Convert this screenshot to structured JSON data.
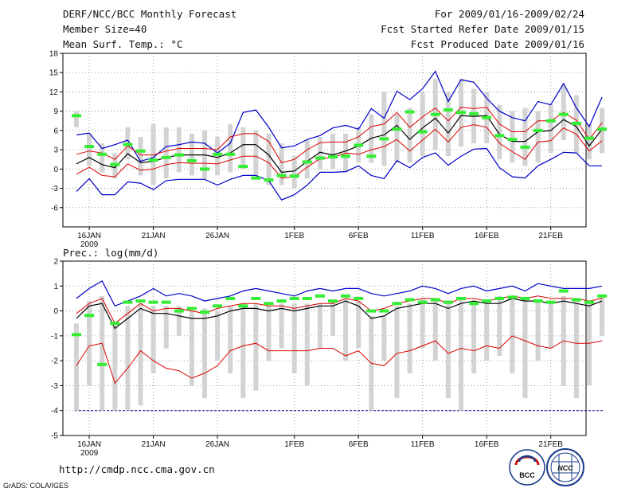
{
  "header": {
    "title": "DERF/NCC/BCC Monthly Forecast",
    "member": "Member Size=40",
    "variable": "Mean Surf. Temp.: °C",
    "period": "For 2009/01/16-2009/02/24",
    "started": "Fcst Started Refer Date 2009/01/15",
    "produced": "Fcst Produced Date 2009/01/16"
  },
  "footer": {
    "url": "http://cmdp.ncc.cma.gov.cn",
    "credit": "GrADS: COLA/IGES",
    "logo_left": "BCC",
    "logo_right": "NCC"
  },
  "colors": {
    "ensemble_mean": "#000000",
    "std_band": "#dd0000",
    "extremes": "#0000cc",
    "box": "#d3d3d3",
    "climatology": "#33ee33",
    "baseline": "#000080"
  },
  "chart_data": [
    {
      "type": "line",
      "title": "Mean Surf. Temp.: °C",
      "xlabel": "",
      "ylabel": "°C",
      "x_ticks": [
        "16JAN",
        "21JAN",
        "26JAN",
        "1FEB",
        "6FEB",
        "11FEB",
        "16FEB",
        "21FEB"
      ],
      "x_tick_days": [
        1,
        6,
        11,
        17,
        22,
        27,
        32,
        37
      ],
      "x_sub_label": "2009",
      "yticks": [
        18,
        15,
        12,
        9,
        6,
        3,
        0,
        -3,
        -6
      ],
      "ylim": [
        -9,
        18
      ],
      "days": 40,
      "series": [
        {
          "name": "max",
          "values": [
            5.3,
            5.6,
            3.2,
            3.8,
            4.5,
            1.2,
            1.8,
            3.5,
            3.8,
            4.2,
            4.0,
            2.5,
            4.0,
            8.8,
            9.2,
            6.5,
            3.3,
            3.6,
            4.6,
            5.2,
            6.4,
            6.8,
            6.2,
            9.4,
            7.9,
            12.1,
            10.8,
            12.5,
            15.2,
            10.5,
            13.9,
            13.5,
            11.0,
            9.0,
            8.0,
            7.5,
            10.5,
            10.0,
            13.3,
            9.5,
            6.6,
            11.2
          ]
        },
        {
          "name": "mean_plus_std",
          "values": [
            2.3,
            2.8,
            2.5,
            1.5,
            3.6,
            2.2,
            2.2,
            2.8,
            3.2,
            3.2,
            3.2,
            3.0,
            5.0,
            5.5,
            5.5,
            4.3,
            1.0,
            1.5,
            3.0,
            4.1,
            4.2,
            4.2,
            5.0,
            6.6,
            7.0,
            8.8,
            6.5,
            8.1,
            9.5,
            7.5,
            9.6,
            9.4,
            9.6,
            7.0,
            5.8,
            5.8,
            7.5,
            7.5,
            8.8,
            7.6,
            4.6,
            7.2
          ]
        },
        {
          "name": "mean",
          "values": [
            0.8,
            1.8,
            0.7,
            0.2,
            2.4,
            1.0,
            1.2,
            1.8,
            2.2,
            2.2,
            2.2,
            1.8,
            2.5,
            3.8,
            3.8,
            2.2,
            -0.5,
            -0.3,
            1.2,
            2.6,
            2.2,
            2.8,
            3.6,
            4.8,
            5.3,
            6.8,
            4.6,
            6.4,
            7.9,
            5.6,
            8.3,
            8.2,
            8.3,
            5.4,
            4.3,
            4.3,
            5.8,
            6.0,
            7.7,
            6.6,
            3.6,
            6.2
          ]
        },
        {
          "name": "mean_minus_std",
          "values": [
            -0.8,
            0.3,
            -1.0,
            -1.2,
            0.8,
            -0.2,
            0.0,
            0.7,
            1.0,
            0.9,
            0.9,
            0.8,
            1.4,
            2.0,
            2.0,
            1.0,
            -1.4,
            -1.2,
            0.3,
            1.6,
            1.8,
            2.5,
            2.3,
            3.0,
            3.5,
            4.6,
            2.8,
            4.5,
            6.2,
            4.2,
            6.5,
            6.9,
            6.5,
            4.0,
            2.7,
            1.5,
            4.2,
            4.4,
            6.4,
            5.4,
            2.8,
            4.4
          ]
        },
        {
          "name": "min",
          "values": [
            -3.5,
            -1.5,
            -4.0,
            -4.0,
            -2.0,
            -2.2,
            -3.2,
            -1.8,
            -1.6,
            -1.6,
            -1.6,
            -2.5,
            -1.6,
            -1.0,
            -1.0,
            -1.8,
            -4.8,
            -4.0,
            -2.5,
            -0.5,
            -0.5,
            -0.4,
            0.5,
            -1.0,
            -1.5,
            1.3,
            0.2,
            1.8,
            2.5,
            0.6,
            2.0,
            3.1,
            3.2,
            0.2,
            -1.2,
            -1.4,
            0.5,
            1.5,
            2.6,
            2.5,
            0.5,
            0.5
          ]
        },
        {
          "name": "boxes",
          "values": [
            [
              6.5,
              9.0
            ],
            [
              0.5,
              5.5
            ],
            [
              -0.5,
              4.0
            ],
            [
              -1.5,
              2.5
            ],
            [
              1.5,
              6.5
            ],
            [
              -1.0,
              5.0
            ],
            [
              -2.5,
              7.0
            ],
            [
              -1.5,
              6.5
            ],
            [
              -0.5,
              6.5
            ],
            [
              -1.0,
              5.5
            ],
            [
              -1.5,
              6.0
            ],
            [
              -1.0,
              5.0
            ],
            [
              -0.5,
              7.0
            ],
            [
              0.0,
              6.5
            ],
            [
              -1.0,
              6.0
            ],
            [
              -2.5,
              5.5
            ],
            [
              -2.5,
              4.0
            ],
            [
              -3.0,
              2.0
            ],
            [
              -1.5,
              4.5
            ],
            [
              0.0,
              5.0
            ],
            [
              0.0,
              5.5
            ],
            [
              -0.5,
              5.5
            ],
            [
              1.0,
              6.5
            ],
            [
              1.0,
              8.5
            ],
            [
              0.5,
              12.0
            ],
            [
              1.0,
              8.5
            ],
            [
              1.0,
              9.5
            ],
            [
              2.0,
              12.0
            ],
            [
              3.0,
              14.0
            ],
            [
              2.0,
              12.0
            ],
            [
              3.5,
              14.0
            ],
            [
              4.0,
              12.5
            ],
            [
              4.0,
              12.0
            ],
            [
              1.5,
              10.0
            ],
            [
              1.0,
              9.0
            ],
            [
              0.5,
              9.5
            ],
            [
              1.0,
              9.0
            ],
            [
              2.5,
              10.0
            ],
            [
              4.5,
              13.0
            ],
            [
              2.5,
              11.5
            ],
            [
              1.5,
              7.0
            ],
            [
              2.5,
              9.5
            ]
          ]
        },
        {
          "name": "climatology",
          "values": [
            8.3,
            3.5,
            2.3,
            0.7,
            3.8,
            2.8,
            1.4,
            1.8,
            2.2,
            1.3,
            0.0,
            2.3,
            2.3,
            0.4,
            -1.4,
            -1.7,
            -1.0,
            -1.1,
            1.1,
            1.7,
            1.9,
            2.0,
            3.7,
            2.0,
            4.7,
            6.2,
            8.9,
            5.8,
            8.5,
            9.2,
            8.8,
            8.6,
            8.0,
            5.2,
            4.6,
            3.4,
            6.0,
            7.5,
            8.5,
            7.1,
            4.8,
            6.2
          ]
        }
      ]
    },
    {
      "type": "line",
      "title": "Prec.: log(mm/d)",
      "xlabel": "",
      "ylabel": "log(mm/d)",
      "x_ticks": [
        "16JAN",
        "21JAN",
        "26JAN",
        "1FEB",
        "6FEB",
        "11FEB",
        "16FEB",
        "21FEB"
      ],
      "x_tick_days": [
        1,
        6,
        11,
        17,
        22,
        27,
        32,
        37
      ],
      "x_sub_label": "2009",
      "yticks": [
        2,
        1,
        0,
        -1,
        -2,
        -3,
        -4,
        -5
      ],
      "ylim": [
        -5,
        2
      ],
      "baseline": -4,
      "days": 40,
      "series": [
        {
          "name": "max",
          "values": [
            0.5,
            0.9,
            1.2,
            0.2,
            0.4,
            0.6,
            0.9,
            0.6,
            0.7,
            0.6,
            0.4,
            0.5,
            0.6,
            0.8,
            0.9,
            0.8,
            0.7,
            0.6,
            0.8,
            0.9,
            0.8,
            0.9,
            0.9,
            0.7,
            0.6,
            0.7,
            0.8,
            1.0,
            0.9,
            0.7,
            0.9,
            1.0,
            0.8,
            0.9,
            1.0,
            0.8,
            1.1,
            1.0,
            0.9,
            0.9,
            0.9,
            1.0
          ]
        },
        {
          "name": "mean_plus_std",
          "values": [
            -0.1,
            0.3,
            0.5,
            -0.5,
            -0.1,
            0.3,
            0.0,
            0.1,
            0.1,
            0.0,
            -0.1,
            0.1,
            0.2,
            0.3,
            0.3,
            0.2,
            0.2,
            0.1,
            0.2,
            0.3,
            0.3,
            0.5,
            0.4,
            0.0,
            0.1,
            0.3,
            0.4,
            0.5,
            0.5,
            0.3,
            0.5,
            0.5,
            0.4,
            0.5,
            0.6,
            0.5,
            0.6,
            0.5,
            0.5,
            0.5,
            0.4,
            0.5
          ]
        },
        {
          "name": "mean",
          "values": [
            -0.3,
            0.2,
            0.3,
            -0.7,
            -0.3,
            0.1,
            -0.1,
            -0.1,
            -0.2,
            -0.3,
            -0.3,
            -0.2,
            0.0,
            0.1,
            0.1,
            0.0,
            0.1,
            0.0,
            0.1,
            0.2,
            0.2,
            0.4,
            0.2,
            -0.3,
            -0.2,
            0.1,
            0.2,
            0.3,
            0.3,
            0.1,
            0.3,
            0.4,
            0.3,
            0.3,
            0.5,
            0.4,
            0.4,
            0.3,
            0.4,
            0.3,
            0.2,
            0.4
          ]
        },
        {
          "name": "mean_minus_std",
          "values": [
            -2.2,
            -1.4,
            -1.3,
            -2.9,
            -2.3,
            -1.6,
            -2.0,
            -2.3,
            -2.4,
            -2.7,
            -2.5,
            -2.2,
            -1.6,
            -1.4,
            -1.3,
            -1.6,
            -1.6,
            -1.6,
            -1.6,
            -1.5,
            -1.5,
            -1.8,
            -1.6,
            -2.1,
            -2.2,
            -1.7,
            -1.6,
            -1.4,
            -1.2,
            -1.7,
            -1.5,
            -1.6,
            -1.4,
            -1.5,
            -1.0,
            -1.2,
            -1.4,
            -1.5,
            -1.2,
            -1.3,
            -1.3,
            -1.2
          ]
        },
        {
          "name": "min",
          "values": [
            -4,
            -4,
            -4,
            -4,
            -4,
            -4,
            -4,
            -4,
            -4,
            -4,
            -4,
            -4,
            -4,
            -4,
            -4,
            -4,
            -4,
            -4,
            -4,
            -4,
            -4,
            -4,
            -4,
            -4,
            -4,
            -4,
            -4,
            -4,
            -4,
            -4,
            -4,
            -4,
            -4,
            -4,
            -4,
            -4,
            -4,
            -4,
            -4,
            -4,
            -4,
            -4
          ]
        },
        {
          "name": "boxes",
          "values": [
            [
              -4.0,
              -0.5
            ],
            [
              -3.0,
              0.4
            ],
            [
              -4.0,
              0.6
            ],
            [
              -4.0,
              -0.6
            ],
            [
              -4.0,
              0.2
            ],
            [
              -3.8,
              0.3
            ],
            [
              -2.5,
              0.2
            ],
            [
              -1.5,
              0.2
            ],
            [
              -1.0,
              0.2
            ],
            [
              -3.0,
              0.0
            ],
            [
              -3.5,
              0.1
            ],
            [
              -2.0,
              0.0
            ],
            [
              -2.5,
              0.2
            ],
            [
              -3.5,
              0.3
            ],
            [
              -3.2,
              0.3
            ],
            [
              -2.0,
              0.2
            ],
            [
              -1.5,
              0.3
            ],
            [
              -2.5,
              0.3
            ],
            [
              -3.0,
              0.3
            ],
            [
              -1.5,
              0.3
            ],
            [
              -1.0,
              0.4
            ],
            [
              -2.0,
              0.5
            ],
            [
              -1.5,
              0.4
            ],
            [
              -4.0,
              -0.2
            ],
            [
              -2.0,
              -0.2
            ],
            [
              -3.5,
              0.2
            ],
            [
              -2.5,
              0.3
            ],
            [
              -1.5,
              0.5
            ],
            [
              -2.0,
              0.4
            ],
            [
              -3.5,
              0.3
            ],
            [
              -4.0,
              0.5
            ],
            [
              -2.5,
              0.4
            ],
            [
              -2.0,
              0.4
            ],
            [
              -1.8,
              0.6
            ],
            [
              -2.5,
              0.6
            ],
            [
              -3.5,
              0.5
            ],
            [
              -2.0,
              0.4
            ],
            [
              -1.5,
              0.4
            ],
            [
              -3.0,
              0.6
            ],
            [
              -3.5,
              0.4
            ],
            [
              -3.0,
              0.3
            ],
            [
              -1.0,
              0.6
            ]
          ]
        },
        {
          "name": "climatology",
          "values": [
            -0.95,
            -0.18,
            -2.15,
            -0.5,
            0.35,
            0.4,
            0.35,
            0.35,
            0.0,
            0.1,
            -0.05,
            0.2,
            0.5,
            0.2,
            0.5,
            0.3,
            0.4,
            0.5,
            0.5,
            0.6,
            0.4,
            0.6,
            0.5,
            0.0,
            0.0,
            0.3,
            0.45,
            0.35,
            0.45,
            0.35,
            0.5,
            0.3,
            0.4,
            0.5,
            0.55,
            0.5,
            0.4,
            0.35,
            0.8,
            0.45,
            0.35,
            0.6
          ]
        }
      ]
    }
  ]
}
